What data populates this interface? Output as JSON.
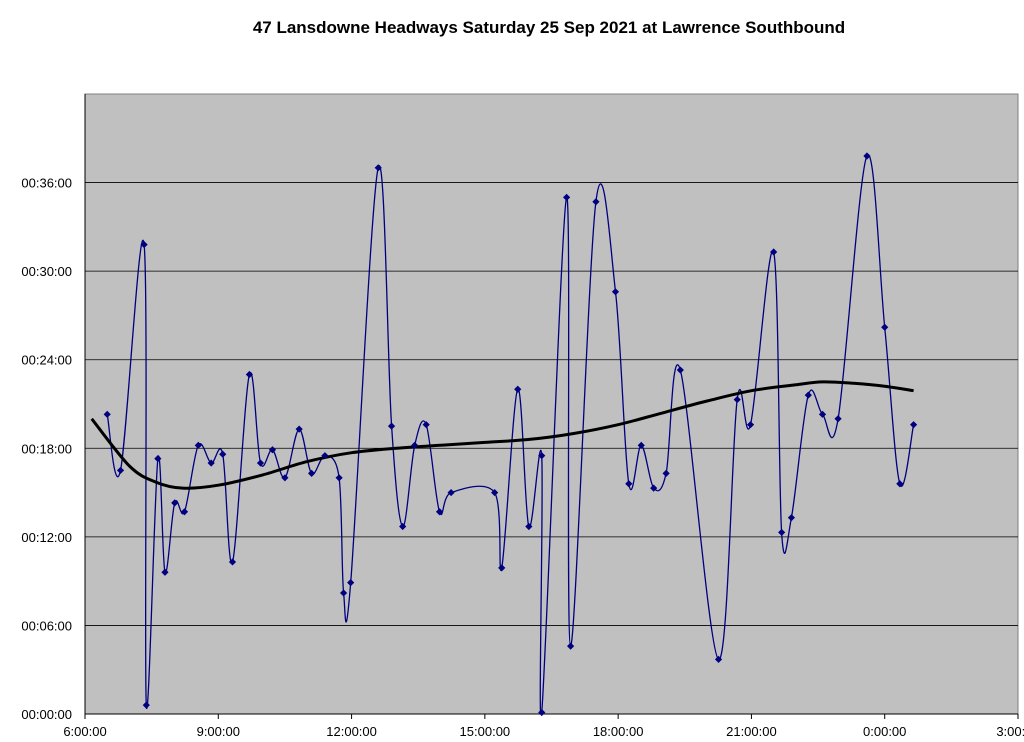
{
  "chart_data": {
    "type": "line",
    "title": "47 Lansdowne Headways Saturday 25 Sep 2021 at Lawrence Southbound",
    "xlabel": "",
    "ylabel": "",
    "x_tick_labels": [
      "6:00:00",
      "9:00:00",
      "12:00:00",
      "15:00:00",
      "18:00:00",
      "21:00:00",
      "0:00:00",
      "3:00:00"
    ],
    "y_tick_labels": [
      "00:00:00",
      "00:06:00",
      "00:12:00",
      "00:18:00",
      "00:24:00",
      "00:30:00",
      "00:36:00"
    ],
    "x_range_hours": [
      6,
      27
    ],
    "y_range_minutes": [
      0,
      42
    ],
    "grid": "horizontal",
    "plot_background": "#c0c0c0",
    "series": [
      {
        "kind": "headway",
        "color": "#000080",
        "marker": "diamond",
        "points": [
          [
            6.5,
            20.3
          ],
          [
            6.8,
            16.5
          ],
          [
            7.33,
            31.8
          ],
          [
            7.38,
            0.6
          ],
          [
            7.64,
            17.3
          ],
          [
            7.8,
            9.6
          ],
          [
            8.02,
            14.3
          ],
          [
            8.24,
            13.7
          ],
          [
            8.55,
            18.2
          ],
          [
            8.84,
            17.0
          ],
          [
            9.1,
            17.6
          ],
          [
            9.32,
            10.3
          ],
          [
            9.7,
            23.0
          ],
          [
            9.95,
            17.0
          ],
          [
            10.22,
            17.9
          ],
          [
            10.5,
            16.0
          ],
          [
            10.82,
            19.3
          ],
          [
            11.1,
            16.3
          ],
          [
            11.4,
            17.5
          ],
          [
            11.72,
            16.0
          ],
          [
            11.82,
            8.2
          ],
          [
            11.98,
            8.9
          ],
          [
            12.6,
            37.0
          ],
          [
            12.9,
            19.5
          ],
          [
            13.15,
            12.7
          ],
          [
            13.42,
            18.2
          ],
          [
            13.68,
            19.6
          ],
          [
            13.98,
            13.7
          ],
          [
            14.24,
            15.0
          ],
          [
            15.22,
            15.0
          ],
          [
            15.38,
            9.9
          ],
          [
            15.74,
            22.0
          ],
          [
            15.99,
            12.7
          ],
          [
            16.28,
            17.5
          ],
          [
            16.28,
            0.1
          ],
          [
            16.84,
            35.0
          ],
          [
            16.93,
            4.6
          ],
          [
            17.5,
            34.7
          ],
          [
            17.94,
            28.6
          ],
          [
            18.24,
            15.6
          ],
          [
            18.52,
            18.2
          ],
          [
            18.8,
            15.3
          ],
          [
            19.08,
            16.3
          ],
          [
            19.4,
            23.3
          ],
          [
            20.26,
            3.7
          ],
          [
            20.68,
            21.3
          ],
          [
            20.98,
            19.6
          ],
          [
            21.5,
            31.3
          ],
          [
            21.68,
            12.3
          ],
          [
            21.9,
            13.3
          ],
          [
            22.28,
            21.6
          ],
          [
            22.6,
            20.3
          ],
          [
            22.95,
            20.0
          ],
          [
            23.6,
            37.8
          ],
          [
            24.0,
            26.2
          ],
          [
            24.34,
            15.6
          ],
          [
            24.65,
            19.6
          ]
        ]
      },
      {
        "kind": "trend",
        "color": "#000000",
        "curve": [
          [
            6.15,
            20.0
          ],
          [
            7.0,
            16.8
          ],
          [
            7.6,
            15.7
          ],
          [
            8.2,
            15.3
          ],
          [
            9.0,
            15.5
          ],
          [
            10.0,
            16.2
          ],
          [
            11.0,
            17.1
          ],
          [
            12.0,
            17.7
          ],
          [
            13.0,
            18.0
          ],
          [
            14.0,
            18.2
          ],
          [
            15.0,
            18.4
          ],
          [
            16.0,
            18.6
          ],
          [
            17.0,
            19.0
          ],
          [
            18.0,
            19.6
          ],
          [
            19.0,
            20.4
          ],
          [
            20.0,
            21.2
          ],
          [
            21.0,
            21.9
          ],
          [
            22.0,
            22.3
          ],
          [
            22.6,
            22.5
          ],
          [
            23.3,
            22.4
          ],
          [
            24.0,
            22.2
          ],
          [
            24.65,
            21.9
          ]
        ]
      }
    ]
  }
}
